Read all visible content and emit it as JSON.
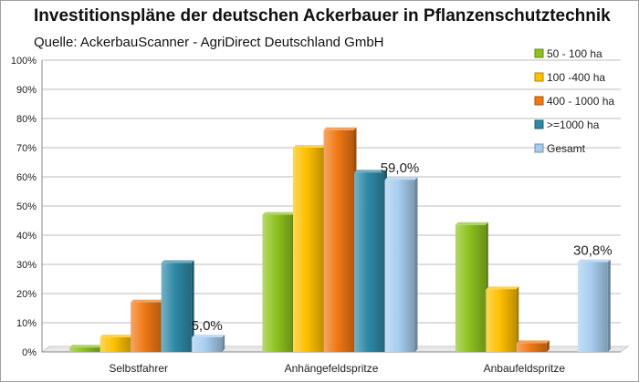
{
  "chart_data": {
    "type": "bar",
    "title": "Investitionspläne der deutschen Ackerbauer in Pflanzenschutztechnik",
    "subtitle": "Quelle: AckerbauScanner - AgriDirect Deutschland GmbH",
    "categories": [
      "Selbstfahrer",
      "Anhängefeldspritze",
      "Anbaufeldspritze"
    ],
    "series": [
      {
        "name": "50 - 100 ha",
        "color": "#8dc21f",
        "values": [
          1.5,
          47,
          43.5
        ]
      },
      {
        "name": "100 -400 ha",
        "color": "#ffc000",
        "values": [
          5,
          70,
          21.5
        ]
      },
      {
        "name": "400 - 1000 ha",
        "color": "#f07814",
        "values": [
          17,
          76,
          3
        ]
      },
      {
        "name": ">=1000 ha",
        "color": "#2e89a6",
        "values": [
          30.5,
          61.5,
          0
        ]
      },
      {
        "name": "Gesamt",
        "color": "#a6cdef",
        "values": [
          5,
          59,
          30.8
        ]
      }
    ],
    "data_labels": [
      {
        "category_index": 0,
        "series_index": 4,
        "text": "5,0%"
      },
      {
        "category_index": 1,
        "series_index": 4,
        "text": "59,0%"
      },
      {
        "category_index": 2,
        "series_index": 4,
        "text": "30,8%"
      }
    ],
    "ylim": [
      0,
      100
    ],
    "yticks": [
      "0%",
      "10%",
      "20%",
      "30%",
      "40%",
      "50%",
      "60%",
      "70%",
      "80%",
      "90%",
      "100%"
    ],
    "grid": true,
    "legend_position": "right"
  }
}
